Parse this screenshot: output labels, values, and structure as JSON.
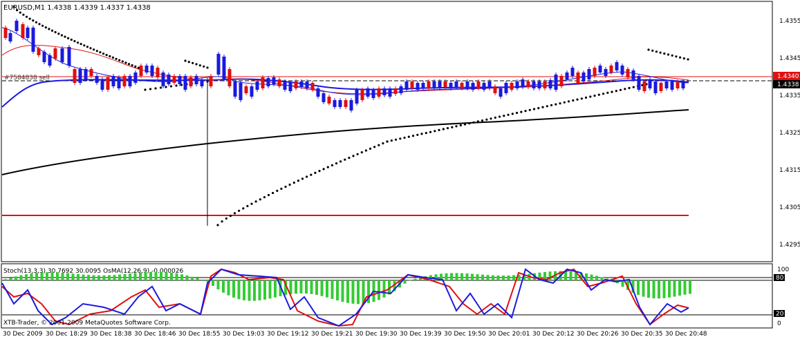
{
  "main_panel": {
    "title": "EURUSD,M1  1.4338 1.4339 1.4337 1.4338",
    "order_label": "#7584838 sell",
    "price_labels": [
      "1.4355",
      "1.4345",
      "1.4335",
      "1.4325",
      "1.4315",
      "1.4305",
      "1.4295"
    ],
    "current_price": "1.4338",
    "order_price": "1.4340"
  },
  "indicator_panel": {
    "title": "Stoch(13,3,3) 30.7692 30.0095   OsMA(12,26,9) -0.000026",
    "copyright": "XTB-Trader, © 2001-2009 MetaQuotes Software Corp.",
    "level_labels": [
      "100",
      "80",
      "20",
      "0"
    ]
  },
  "time_axis": {
    "labels": [
      "30 Dec 2009",
      "30 Dec 18:29",
      "30 Dec 18:38",
      "30 Dec 18:46",
      "30 Dec 18:55",
      "30 Dec 19:03",
      "30 Dec 19:12",
      "30 Dec 19:21",
      "30 Dec 19:30",
      "30 Dec 19:39",
      "30 Dec 19:50",
      "30 Dec 20:01",
      "30 Dec 20:12",
      "30 Dec 20:26",
      "30 Dec 20:35",
      "30 Dec 20:48"
    ]
  },
  "colors": {
    "bull": "#1a1adf",
    "bear": "#e01010",
    "ma_fast": "#1a1adf",
    "ma_red": "#e01010",
    "ma_slow": "#000000",
    "order_line": "#e01010",
    "osma": "#33cc33"
  }
}
